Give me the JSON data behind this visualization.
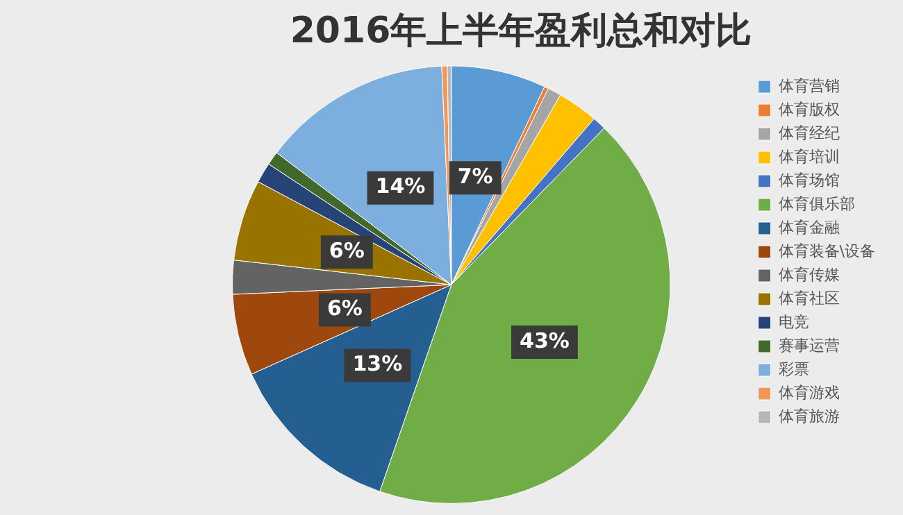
{
  "chart_data": {
    "type": "pie",
    "title": "2016年上半年盈利总和对比",
    "categories": [
      "体育营销",
      "体育版权",
      "体育经纪",
      "体育培训",
      "体育场馆",
      "体育俱乐部",
      "体育金融",
      "体育装备\\设备",
      "体育传媒",
      "体育社区",
      "电竞",
      "赛事运营",
      "彩票",
      "体育游戏",
      "体育旅游"
    ],
    "values": [
      7,
      0.3,
      1,
      3,
      1,
      43,
      13,
      6,
      2.5,
      6,
      1.5,
      1,
      14,
      0.4,
      0.3
    ],
    "colors": [
      "#5b9bd5",
      "#ed7d31",
      "#a5a5a5",
      "#ffc000",
      "#4472c4",
      "#70ad47",
      "#255e91",
      "#9e480e",
      "#636363",
      "#997300",
      "#264478",
      "#43682b",
      "#7cafdd",
      "#f1975a",
      "#b7b7b7"
    ],
    "value_labels": [
      "7%",
      null,
      null,
      null,
      null,
      "43%",
      "13%",
      "6%",
      null,
      "6%",
      null,
      null,
      "14%",
      null,
      null
    ],
    "legend": "right"
  }
}
